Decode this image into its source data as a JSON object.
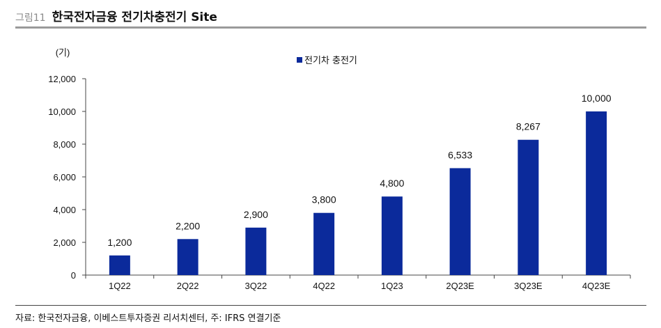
{
  "header": {
    "figure_number": "그림11",
    "title": "한국전자금융 전기차충전기 Site"
  },
  "source_note": "자료: 한국전자금융, 이베스트투자증권 리서치센터, 주: IFRS 연결기준",
  "chart_data": {
    "type": "bar",
    "unit_label": "(기)",
    "categories": [
      "1Q22",
      "2Q22",
      "3Q22",
      "4Q22",
      "1Q23",
      "2Q23E",
      "3Q23E",
      "4Q23E"
    ],
    "series": [
      {
        "name": "전기차 충전기",
        "values": [
          1200,
          2200,
          2900,
          3800,
          4800,
          6533,
          8267,
          10000
        ],
        "value_labels": [
          "1,200",
          "2,200",
          "2,900",
          "3,800",
          "4,800",
          "6,533",
          "8,267",
          "10,000"
        ],
        "color": "#0b2a9b"
      }
    ],
    "y_ticks": [
      0,
      2000,
      4000,
      6000,
      8000,
      10000,
      12000
    ],
    "y_tick_labels": [
      "0",
      "2,000",
      "4,000",
      "6,000",
      "8,000",
      "10,000",
      "12,000"
    ],
    "ylim": [
      0,
      12000
    ],
    "grid": false,
    "legend_position": "top-center"
  }
}
